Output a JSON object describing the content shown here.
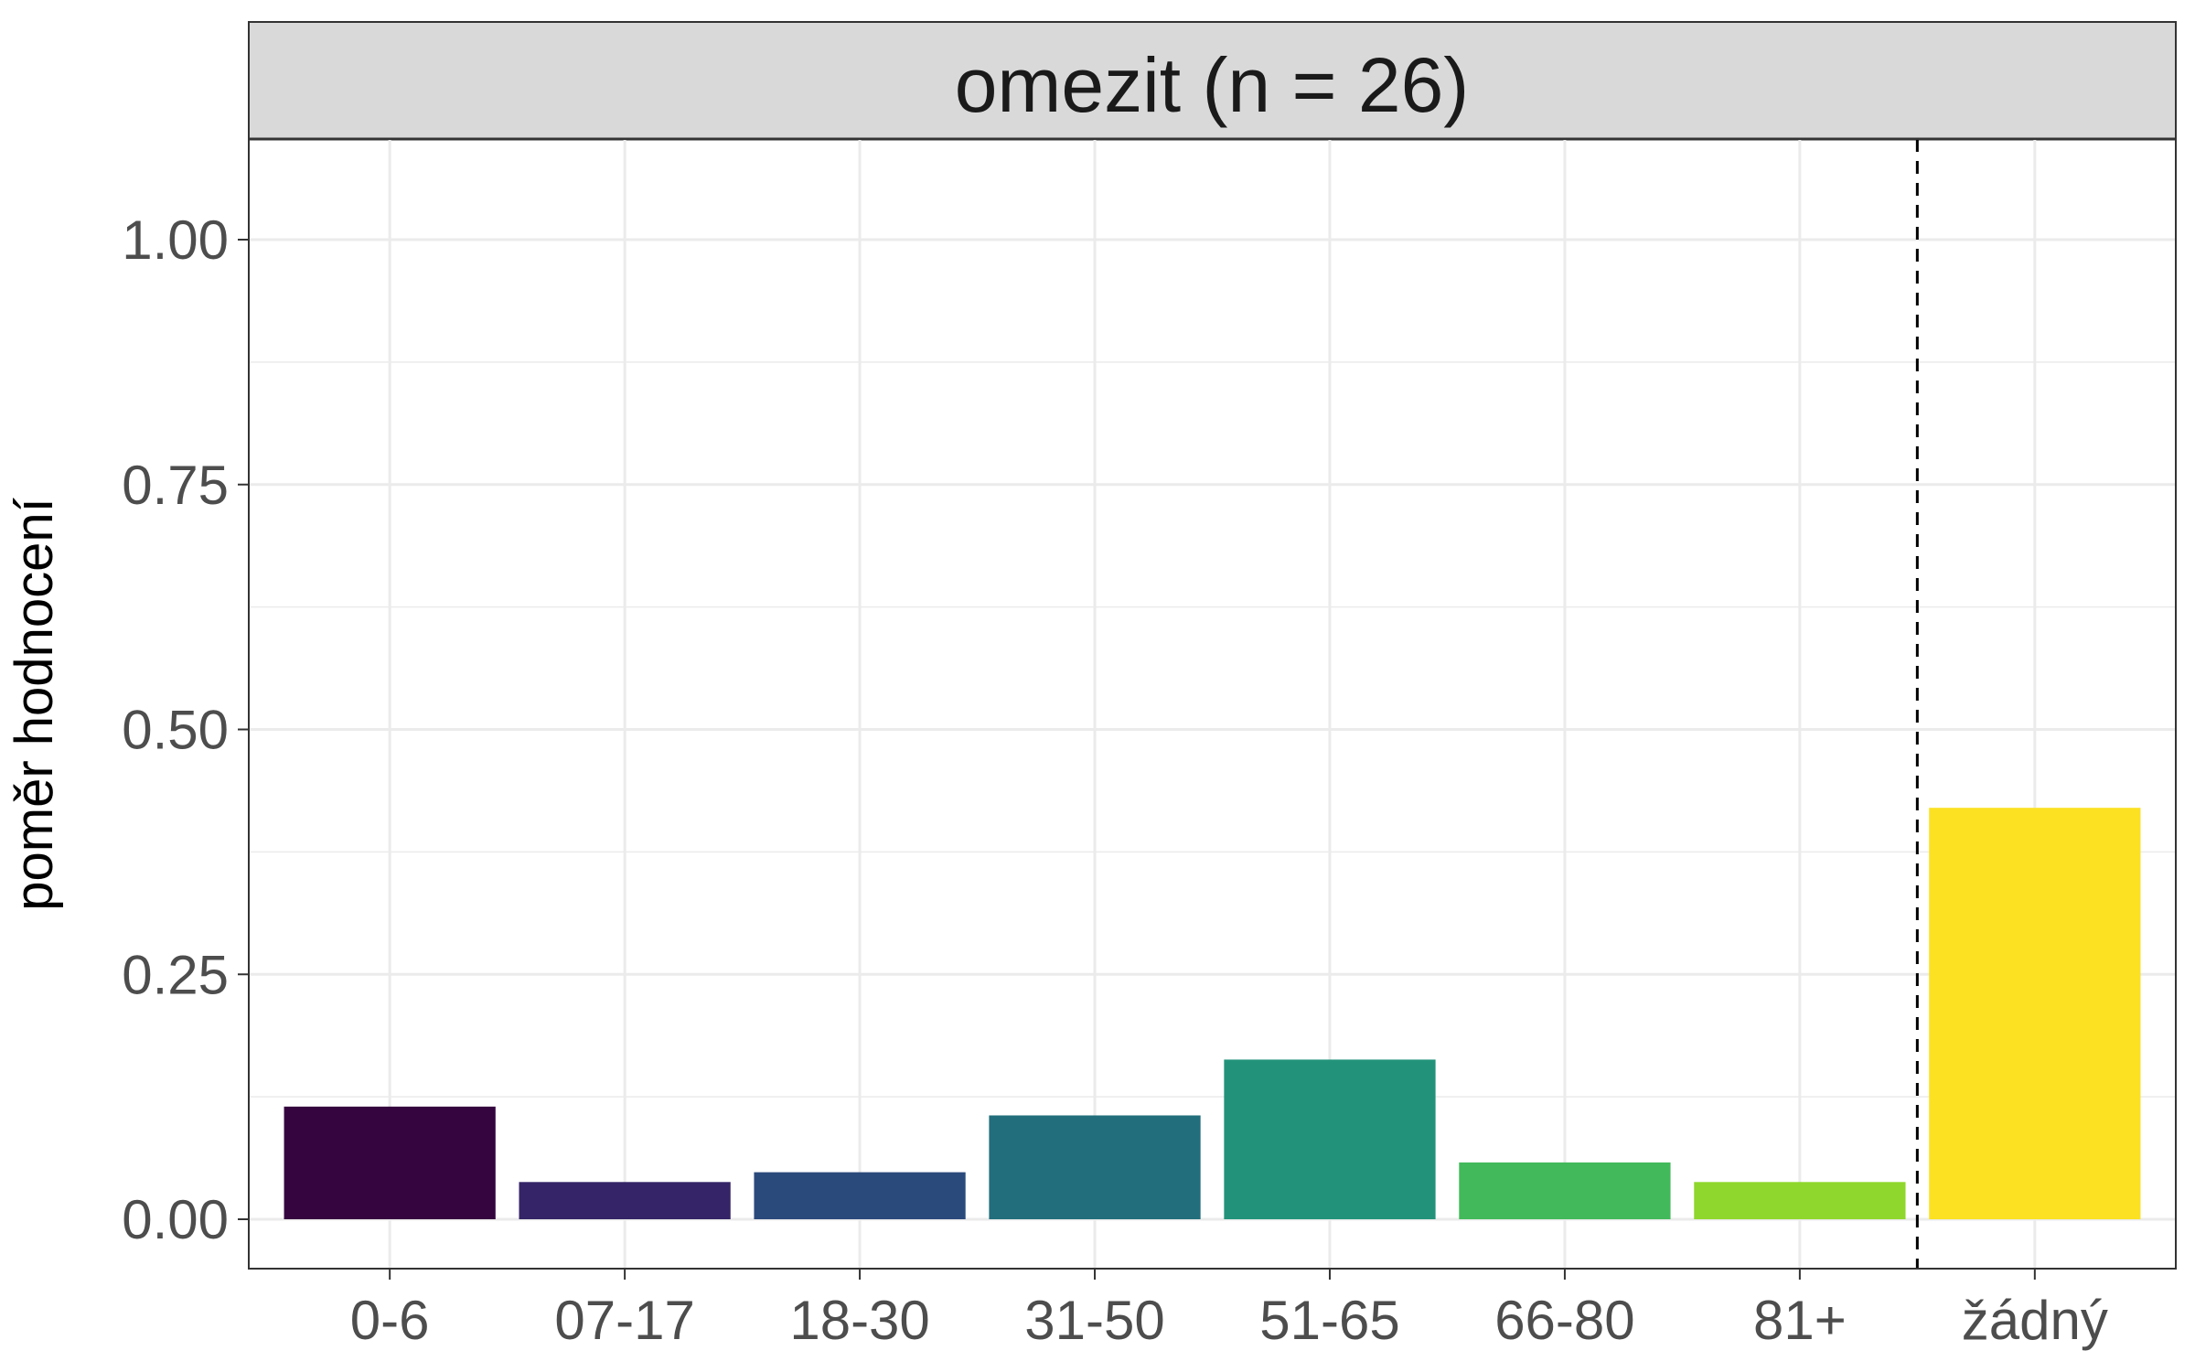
{
  "chart_data": {
    "type": "bar",
    "facet_title": "omezit (n = 26)",
    "ylabel": "poměr hodnocení",
    "xlabel": "",
    "categories": [
      "0-6",
      "07-17",
      "18-30",
      "31-50",
      "51-65",
      "66-80",
      "81+",
      "žádný"
    ],
    "values": [
      0.115,
      0.038,
      0.048,
      0.106,
      0.163,
      0.058,
      0.038,
      0.42
    ],
    "colors": [
      "#35053f",
      "#352467",
      "#2b4a7c",
      "#226e7c",
      "#22937a",
      "#42b95a",
      "#8fd72c",
      "#fbe122"
    ],
    "ylim": [
      -0.05,
      1.1
    ],
    "yticks": [
      0.0,
      0.25,
      0.5,
      0.75,
      1.0
    ],
    "ytick_labels": [
      "0.00",
      "0.25",
      "0.50",
      "0.75",
      "1.00"
    ],
    "reference_line": {
      "style": "dashed",
      "between": [
        "81+",
        "žádný"
      ]
    },
    "grid": true,
    "legend": "none"
  }
}
